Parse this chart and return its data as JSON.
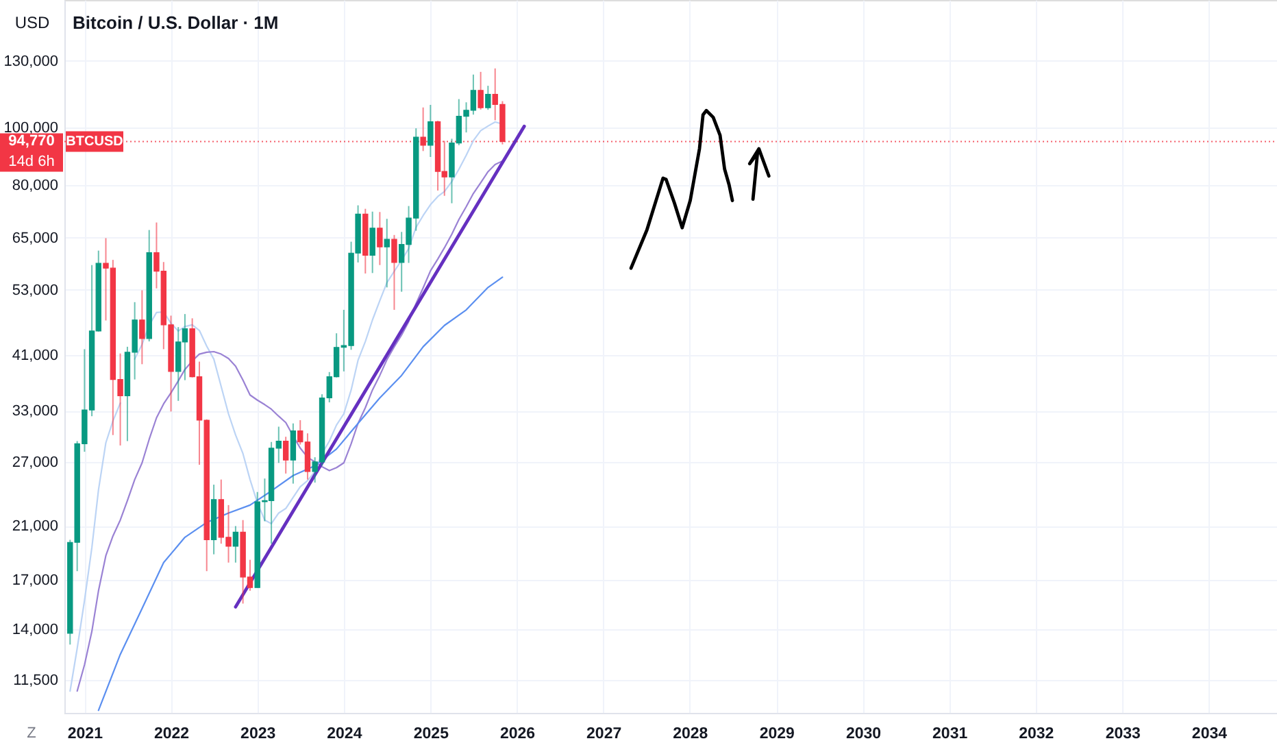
{
  "chart_data": {
    "type": "candlestick",
    "title": "Bitcoin / U.S. Dollar · 1M",
    "ylabel": "USD",
    "x": [
      "2020-11",
      "2020-12",
      "2021-01",
      "2021-02",
      "2021-03",
      "2021-04",
      "2021-05",
      "2021-06",
      "2021-07",
      "2021-08",
      "2021-09",
      "2021-10",
      "2021-11",
      "2021-12",
      "2022-01",
      "2022-02",
      "2022-03",
      "2022-04",
      "2022-05",
      "2022-06",
      "2022-07",
      "2022-08",
      "2022-09",
      "2022-10",
      "2022-11",
      "2022-12",
      "2023-01",
      "2023-02",
      "2023-03",
      "2023-04",
      "2023-05",
      "2023-06",
      "2023-07",
      "2023-08",
      "2023-09",
      "2023-10",
      "2023-11",
      "2023-12",
      "2024-01",
      "2024-02",
      "2024-03",
      "2024-04",
      "2024-05",
      "2024-06",
      "2024-07",
      "2024-08",
      "2024-09",
      "2024-10",
      "2024-11",
      "2024-12",
      "2025-01",
      "2025-02",
      "2025-03",
      "2025-04",
      "2025-05",
      "2025-06",
      "2025-07",
      "2025-08",
      "2025-09",
      "2025-10",
      "2025-11"
    ],
    "ohlc": [
      [
        13800,
        19900,
        13200,
        19700
      ],
      [
        19700,
        29300,
        17600,
        29000
      ],
      [
        29000,
        42000,
        28100,
        33100
      ],
      [
        33100,
        58400,
        32300,
        45100
      ],
      [
        45100,
        61800,
        45000,
        58800
      ],
      [
        58800,
        64900,
        47000,
        57700
      ],
      [
        57700,
        59600,
        30000,
        37300
      ],
      [
        37300,
        41300,
        28800,
        35000
      ],
      [
        35000,
        42400,
        29300,
        41500
      ],
      [
        41500,
        50500,
        37300,
        47100
      ],
      [
        47100,
        52900,
        39600,
        43800
      ],
      [
        43800,
        67000,
        43300,
        61300
      ],
      [
        61300,
        69000,
        53300,
        57000
      ],
      [
        57000,
        59100,
        42000,
        46200
      ],
      [
        46200,
        47900,
        32900,
        38500
      ],
      [
        38500,
        45800,
        34300,
        43200
      ],
      [
        43200,
        48200,
        37200,
        45500
      ],
      [
        45500,
        47400,
        37600,
        37700
      ],
      [
        37700,
        40000,
        26700,
        31800
      ],
      [
        31800,
        31900,
        17600,
        19900
      ],
      [
        19900,
        24700,
        18800,
        23300
      ],
      [
        23300,
        25200,
        19600,
        20100
      ],
      [
        20100,
        22800,
        18200,
        19400
      ],
      [
        19400,
        21000,
        18200,
        20500
      ],
      [
        20500,
        21500,
        15500,
        17200
      ],
      [
        17200,
        18400,
        16300,
        16500
      ],
      [
        16500,
        24000,
        16500,
        23100
      ],
      [
        23100,
        25300,
        21400,
        23200
      ],
      [
        23200,
        29200,
        19600,
        28500
      ],
      [
        28500,
        31000,
        26900,
        29300
      ],
      [
        29300,
        29800,
        25800,
        27200
      ],
      [
        27200,
        31400,
        24800,
        30500
      ],
      [
        30500,
        31800,
        28900,
        29200
      ],
      [
        29200,
        30200,
        25200,
        26000
      ],
      [
        26000,
        27500,
        24900,
        27000
      ],
      [
        27000,
        35200,
        26600,
        34700
      ],
      [
        34700,
        38400,
        34100,
        37700
      ],
      [
        37700,
        44700,
        37600,
        42300
      ],
      [
        42300,
        49000,
        38500,
        42600
      ],
      [
        42600,
        64000,
        41900,
        61200
      ],
      [
        61200,
        73800,
        59000,
        71300
      ],
      [
        71300,
        72800,
        56500,
        60700
      ],
      [
        60700,
        72000,
        56600,
        67500
      ],
      [
        67500,
        71900,
        58400,
        62700
      ],
      [
        62700,
        70000,
        53500,
        64600
      ],
      [
        64600,
        65700,
        49000,
        59000
      ],
      [
        59000,
        66500,
        52600,
        63300
      ],
      [
        63300,
        73600,
        58900,
        70200
      ],
      [
        70200,
        99800,
        66800,
        96400
      ],
      [
        96400,
        108300,
        91300,
        93400
      ],
      [
        93400,
        109400,
        89200,
        102400
      ],
      [
        102400,
        102800,
        78200,
        84300
      ],
      [
        84300,
        95000,
        76600,
        82500
      ],
      [
        82500,
        95800,
        74400,
        94200
      ],
      [
        94200,
        111900,
        93400,
        104600
      ],
      [
        104600,
        110500,
        98200,
        107100
      ],
      [
        107100,
        123200,
        105300,
        115800
      ],
      [
        115800,
        124500,
        107400,
        108200
      ],
      [
        108200,
        117900,
        107300,
        114000
      ],
      [
        114000,
        126200,
        103000,
        109600
      ],
      [
        109600,
        111000,
        93700,
        94770
      ]
    ],
    "colors": [
      "#089981",
      "#089981",
      "#089981",
      "#089981",
      "#089981",
      "#f23645",
      "#f23645",
      "#f23645",
      "#089981",
      "#089981",
      "#f23645",
      "#089981",
      "#f23645",
      "#f23645",
      "#f23645",
      "#089981",
      "#089981",
      "#f23645",
      "#f23645",
      "#f23645",
      "#089981",
      "#f23645",
      "#f23645",
      "#089981",
      "#f23645",
      "#f23645",
      "#089981",
      "#089981",
      "#089981",
      "#089981",
      "#f23645",
      "#089981",
      "#f23645",
      "#f23645",
      "#089981",
      "#089981",
      "#089981",
      "#089981",
      "#089981",
      "#089981",
      "#089981",
      "#f23645",
      "#089981",
      "#f23645",
      "#089981",
      "#f23645",
      "#089981",
      "#089981",
      "#089981",
      "#f23645",
      "#089981",
      "#f23645",
      "#f23645",
      "#089981",
      "#089981",
      "#089981",
      "#089981",
      "#f23645",
      "#089981",
      "#f23645",
      "#f23645"
    ],
    "series": [
      {
        "type": "line",
        "color": "#bcd4f5",
        "values": [
          11000,
          13000,
          15700,
          19300,
          24200,
          29100,
          31700,
          34000,
          null,
          40400,
          42800,
          46100,
          48500,
          48600,
          46500,
          45100,
          45900,
          46200,
          45200,
          42500,
          40400,
          36300,
          32600,
          30000,
          27900,
          25200,
          23000,
          21500,
          21200,
          22100,
          22500,
          23500,
          24500,
          25100,
          26000,
          27900,
          29300,
          31200,
          32600,
          35800,
          40200,
          43300,
          47100,
          50800,
          54500,
          57000,
          59500,
          62300,
          67700,
          70900,
          74000,
          76400,
          77900,
          81000,
          85000,
          89800,
          95100,
          98900,
          100700,
          102300,
          101500
        ]
      },
      {
        "type": "line",
        "color": "#9a82d4",
        "x": [
          "2020-12",
          "2021-01",
          "2021-02",
          "2021-03",
          "2021-04",
          "2021-05",
          "2021-06",
          "2021-07",
          "2021-08",
          "2021-09",
          "2021-10",
          "2021-11",
          "2021-12",
          "2022-01",
          "2022-02",
          "2022-03",
          "2022-04",
          "2022-05",
          "2022-06",
          "2022-07",
          "2022-08",
          "2022-09",
          "2022-10",
          "2022-11",
          "2022-12",
          "2023-01",
          "2023-02",
          "2023-03",
          "2023-04",
          "2023-05",
          "2023-06",
          "2023-07",
          "2023-08",
          "2023-09",
          "2023-10",
          "2023-11",
          "2023-12",
          "2024-01",
          "2024-02",
          "2024-03",
          "2024-04",
          "2024-05",
          "2024-06",
          "2024-07",
          "2024-08",
          "2024-09",
          "2024-10",
          "2024-11",
          "2024-12",
          "2025-01",
          "2025-02",
          "2025-03",
          "2025-04",
          "2025-05",
          "2025-06",
          "2025-07",
          "2025-08",
          "2025-09",
          "2025-10",
          "2025-11"
        ],
        "values": [
          11000,
          12200,
          13900,
          16300,
          18700,
          20200,
          21500,
          23200,
          25200,
          26900,
          29500,
          32100,
          33900,
          35400,
          37100,
          38800,
          40100,
          41200,
          41500,
          41600,
          41200,
          40500,
          39300,
          37200,
          35100,
          34400,
          33800,
          33200,
          32300,
          31500,
          29900,
          28500,
          27500,
          27000,
          26500,
          26100,
          26400,
          26900,
          29000,
          31400,
          33400,
          35800,
          37900,
          40300,
          42400,
          44400,
          46800,
          50200,
          53400,
          57100,
          59800,
          62500,
          65900,
          69800,
          73400,
          77300,
          80600,
          84200,
          86600,
          87800
        ]
      },
      {
        "type": "line",
        "color": "#5b8ff0",
        "x": [
          "2021-03",
          "2021-06",
          "2021-09",
          "2021-12",
          "2022-03",
          "2022-06",
          "2022-09",
          "2022-12",
          "2023-03",
          "2023-06",
          "2023-09",
          "2023-12",
          "2024-03",
          "2024-06",
          "2024-09",
          "2024-12",
          "2025-03",
          "2025-06",
          "2025-09",
          "2025-11"
        ],
        "values": [
          10200,
          12700,
          15200,
          18200,
          20100,
          21300,
          22100,
          22800,
          24100,
          25600,
          26600,
          28400,
          31400,
          34700,
          37900,
          42400,
          46100,
          49000,
          53500,
          55700
        ]
      },
      {
        "type": "line",
        "color": "#6530c0",
        "x": [
          "2022-10",
          "2026-02"
        ],
        "values": [
          15300,
          100600
        ]
      },
      {
        "type": "line",
        "color": "#000000",
        "x": [
          "2027-04-28",
          "2027-07-04",
          "2027-09-10",
          "2027-09-23",
          "2027-10-28",
          "2027-11-30",
          "2028-01-03",
          "2028-02-11",
          "2028-02-26",
          "2028-03-11",
          "2028-04-09",
          "2028-05-08",
          "2028-05-27",
          "2028-06-15",
          "2028-06-29"
        ],
        "values": [
          57700,
          67000,
          82100,
          81700,
          74500,
          67600,
          75200,
          92100,
          105200,
          107000,
          104200,
          97100,
          85100,
          80000,
          75200
        ]
      },
      {
        "type": "line",
        "color": "#000000",
        "x": [
          "2028-09-24",
          "2028-10-13",
          "2028-09-10",
          "2028-10-19",
          "2028-11-30"
        ],
        "values": [
          75600,
          90500,
          86900,
          92100,
          82800
        ]
      }
    ],
    "log": true,
    "ylim": [
      10100,
      165000
    ],
    "yticks": [
      {
        "value": 11500,
        "label": "11,500"
      },
      {
        "value": 14000,
        "label": "14,000"
      },
      {
        "value": 17000,
        "label": "17,000"
      },
      {
        "value": 21000,
        "label": "21,000"
      },
      {
        "value": 27000,
        "label": "27,000"
      },
      {
        "value": 33000,
        "label": "33,000"
      },
      {
        "value": 41000,
        "label": "41,000"
      },
      {
        "value": 53000,
        "label": "53,000"
      },
      {
        "value": 65000,
        "label": "65,000"
      },
      {
        "value": 80000,
        "label": "80,000"
      },
      {
        "value": 100000,
        "label": "100,000"
      },
      {
        "value": 130000,
        "label": "130,000"
      }
    ],
    "xlim": [
      "2020-10-08",
      "2034-10-16"
    ],
    "xticks": [
      "2021",
      "2022",
      "2023",
      "2024",
      "2025",
      "2026",
      "2027",
      "2028",
      "2029",
      "2030",
      "2031",
      "2032",
      "2033",
      "2034"
    ],
    "grid": true,
    "ref_lines": [
      {
        "axis": "y",
        "value": 94770,
        "label": "94,770",
        "color": "#f23645",
        "line_style": "dotted"
      }
    ],
    "annotations": [
      {
        "text": "BTCUSD",
        "y": 94770
      },
      "14d 6h",
      "Z"
    ]
  }
}
